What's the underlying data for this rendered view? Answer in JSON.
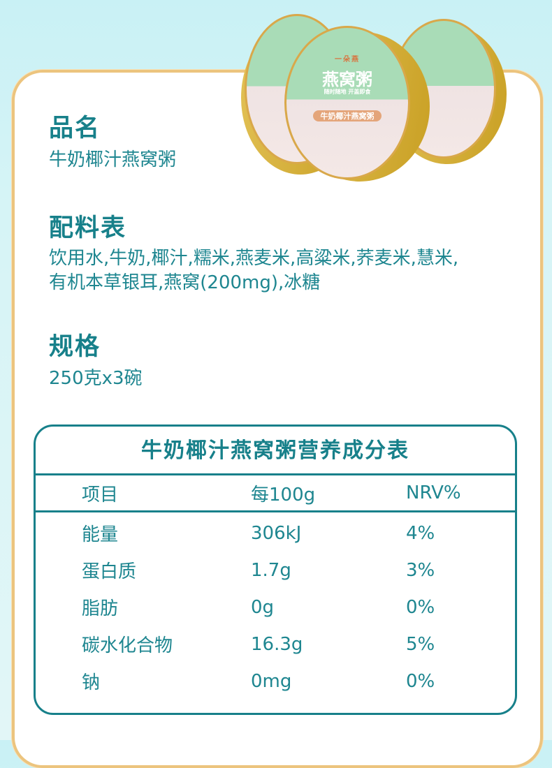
{
  "product_image": {
    "brand": "一朵燕",
    "lid_title": "燕窝粥",
    "lid_flavor": "牛奶椰汁燕窝粥",
    "lid_slogan": "随时随地 开盖即食"
  },
  "sections": [
    {
      "heading": "品名",
      "text": "牛奶椰汁燕窝粥"
    },
    {
      "heading": "配料表",
      "text": "饮用水,牛奶,椰汁,糯米,燕麦米,高粱米,荞麦米,慧米,",
      "text2": "有机本草银耳,燕窝(200mg),冰糖"
    },
    {
      "heading": "规格",
      "text": "250克x3碗"
    }
  ],
  "nutrition": {
    "title": "牛奶椰汁燕窝粥营养成分表",
    "headers": [
      "项目",
      "每100g",
      "NRV%"
    ],
    "rows": [
      [
        "能量",
        "306kJ",
        "4%"
      ],
      [
        "蛋白质",
        "1.7g",
        "3%"
      ],
      [
        "脂肪",
        "0g",
        "0%"
      ],
      [
        "碳水化合物",
        "16.3g",
        "5%"
      ],
      [
        "钠",
        "0mg",
        "0%"
      ]
    ]
  },
  "colors": {
    "accent": "#17808a",
    "border_gold": "#ecc47e",
    "background": "#c9f1f5"
  }
}
